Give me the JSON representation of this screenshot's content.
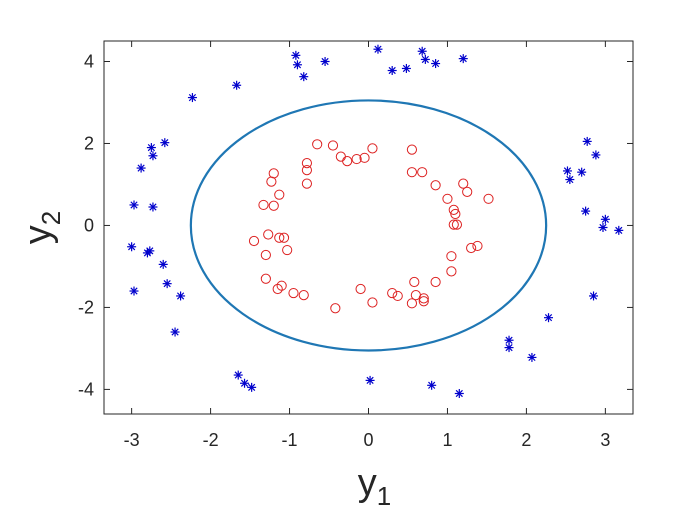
{
  "chart_data": {
    "type": "scatter",
    "title": "",
    "xlabel": {
      "base": "y",
      "sub": "1"
    },
    "ylabel": {
      "base": "y",
      "sub": "2"
    },
    "xlim": [
      -3.35,
      3.35
    ],
    "ylim": [
      -4.6,
      4.5
    ],
    "xticks": [
      -3,
      -2,
      -1,
      0,
      1,
      2,
      3
    ],
    "yticks": [
      -4,
      -2,
      0,
      2,
      4
    ],
    "grid": false,
    "legend": "none",
    "ellipse": {
      "center": [
        0,
        0
      ],
      "rx": 2.25,
      "ry": 3.05,
      "color": "#1f77b4"
    },
    "series": [
      {
        "marker": "asterisk",
        "color": "#0000cc",
        "points": [
          [
            -0.92,
            4.15
          ],
          [
            -0.9,
            3.92
          ],
          [
            -0.82,
            3.63
          ],
          [
            -0.55,
            4.0
          ],
          [
            0.12,
            4.3
          ],
          [
            0.3,
            3.78
          ],
          [
            0.48,
            3.83
          ],
          [
            0.68,
            4.25
          ],
          [
            0.72,
            4.05
          ],
          [
            0.85,
            3.95
          ],
          [
            1.2,
            4.07
          ],
          [
            -1.67,
            3.42
          ],
          [
            -2.23,
            3.12
          ],
          [
            -2.58,
            2.02
          ],
          [
            -2.75,
            1.9
          ],
          [
            -2.73,
            1.7
          ],
          [
            -2.88,
            1.4
          ],
          [
            -2.97,
            0.5
          ],
          [
            -2.73,
            0.45
          ],
          [
            -3.0,
            -0.52
          ],
          [
            -2.77,
            -0.62
          ],
          [
            -2.8,
            -0.67
          ],
          [
            -2.6,
            -0.95
          ],
          [
            -2.97,
            -1.6
          ],
          [
            -2.55,
            -1.42
          ],
          [
            -2.38,
            -1.72
          ],
          [
            -2.45,
            -2.6
          ],
          [
            -1.65,
            -3.65
          ],
          [
            -1.57,
            -3.85
          ],
          [
            -1.48,
            -3.95
          ],
          [
            0.02,
            -3.78
          ],
          [
            0.8,
            -3.9
          ],
          [
            1.15,
            -4.1
          ],
          [
            1.78,
            -2.8
          ],
          [
            1.78,
            -2.98
          ],
          [
            2.07,
            -3.22
          ],
          [
            2.28,
            -2.25
          ],
          [
            2.85,
            -1.72
          ],
          [
            2.77,
            2.05
          ],
          [
            2.88,
            1.72
          ],
          [
            2.52,
            1.33
          ],
          [
            2.7,
            1.3
          ],
          [
            2.55,
            1.12
          ],
          [
            2.75,
            0.35
          ],
          [
            3.0,
            0.15
          ],
          [
            2.97,
            -0.05
          ],
          [
            3.17,
            -0.12
          ]
        ]
      },
      {
        "marker": "circle",
        "color": "#dd2222",
        "points": [
          [
            -0.65,
            1.98
          ],
          [
            -0.45,
            1.95
          ],
          [
            -0.35,
            1.68
          ],
          [
            -0.27,
            1.57
          ],
          [
            -0.15,
            1.62
          ],
          [
            -0.05,
            1.65
          ],
          [
            0.05,
            1.88
          ],
          [
            -0.78,
            1.52
          ],
          [
            -0.78,
            1.35
          ],
          [
            -0.78,
            1.02
          ],
          [
            -1.2,
            1.27
          ],
          [
            -1.23,
            1.07
          ],
          [
            -1.13,
            0.75
          ],
          [
            -1.33,
            0.5
          ],
          [
            -1.2,
            0.48
          ],
          [
            0.55,
            1.85
          ],
          [
            0.55,
            1.3
          ],
          [
            0.68,
            1.3
          ],
          [
            0.85,
            0.98
          ],
          [
            1.0,
            0.65
          ],
          [
            1.2,
            1.02
          ],
          [
            1.25,
            0.82
          ],
          [
            1.52,
            0.65
          ],
          [
            1.08,
            0.38
          ],
          [
            1.1,
            0.28
          ],
          [
            1.08,
            0.02
          ],
          [
            1.12,
            0.02
          ],
          [
            -1.45,
            -0.38
          ],
          [
            -1.27,
            -0.22
          ],
          [
            -1.13,
            -0.3
          ],
          [
            -1.07,
            -0.3
          ],
          [
            -1.03,
            -0.6
          ],
          [
            -1.3,
            -0.72
          ],
          [
            -1.3,
            -1.3
          ],
          [
            -1.15,
            -1.55
          ],
          [
            -1.1,
            -1.47
          ],
          [
            -0.95,
            -1.65
          ],
          [
            -0.82,
            -1.7
          ],
          [
            -0.42,
            -2.02
          ],
          [
            -0.1,
            -1.55
          ],
          [
            0.05,
            -1.88
          ],
          [
            0.3,
            -1.65
          ],
          [
            0.37,
            -1.72
          ],
          [
            0.55,
            -1.9
          ],
          [
            0.58,
            -1.38
          ],
          [
            0.6,
            -1.7
          ],
          [
            0.7,
            -1.85
          ],
          [
            0.7,
            -1.78
          ],
          [
            0.85,
            -1.38
          ],
          [
            1.05,
            -0.75
          ],
          [
            1.05,
            -1.12
          ],
          [
            1.3,
            -0.55
          ],
          [
            1.38,
            -0.5
          ]
        ]
      }
    ]
  }
}
